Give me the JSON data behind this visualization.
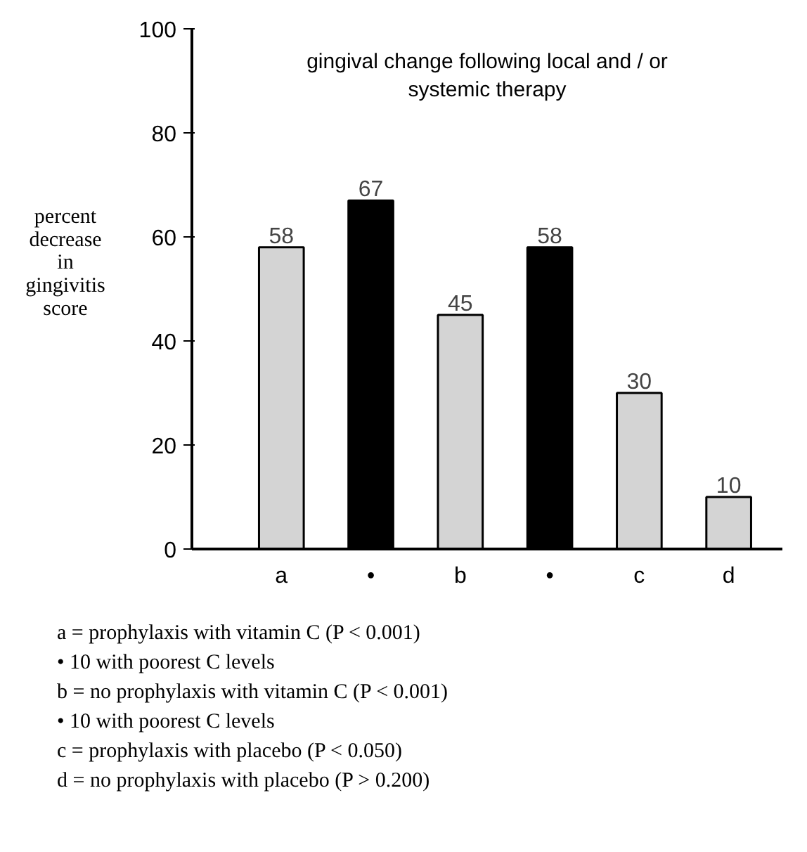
{
  "chart_data": {
    "type": "bar",
    "title": "gingival change following local and / or\nsystemic therapy",
    "ylabel": "percent\ndecrease\nin\ngingivitis\nscore",
    "categories": [
      "a",
      "•",
      "b",
      "•",
      "c",
      "d"
    ],
    "values": [
      58,
      67,
      45,
      58,
      30,
      10
    ],
    "colors": [
      "#d4d4d4",
      "#000000",
      "#d4d4d4",
      "#000000",
      "#d4d4d4",
      "#d4d4d4"
    ],
    "ylim": [
      0,
      100
    ],
    "yticks": [
      0,
      20,
      40,
      60,
      80,
      100
    ],
    "grid": false,
    "data_labels": true,
    "annotations": [
      "a = prophylaxis with vitamin C            (P < 0.001)",
      "      • 10 with poorest C levels",
      "b = no prophylaxis with vitamin C       (P < 0.001)",
      "      • 10 with poorest C levels",
      "c = prophylaxis with placebo                (P < 0.050)",
      "d = no prophylaxis with placebo           (P > 0.200)"
    ]
  }
}
